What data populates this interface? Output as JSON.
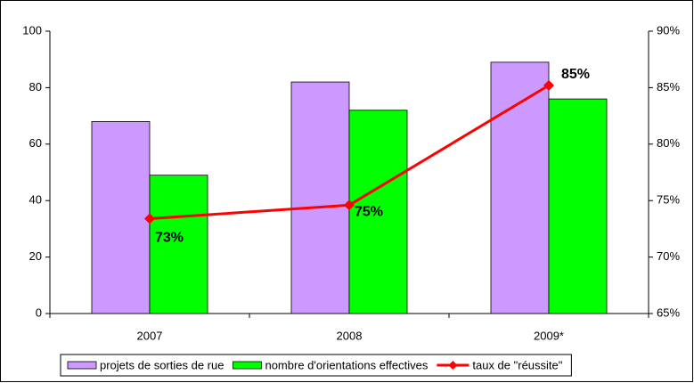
{
  "chart_data": {
    "type": "bar-line",
    "categories": [
      "2007",
      "2008",
      "2009*"
    ],
    "series": [
      {
        "name": "projets de sorties de rue",
        "color": "#cc99ff",
        "type": "bar",
        "values": [
          68,
          82,
          89
        ]
      },
      {
        "name": "nombre d'orientations effectives",
        "color": "#00ff00",
        "type": "bar",
        "values": [
          49,
          72,
          76
        ]
      },
      {
        "name": "taux de \"réussite\"",
        "color": "#ff0000",
        "type": "line",
        "axis": "y2",
        "values": [
          73.4,
          74.6,
          85.2
        ],
        "value_labels": [
          "73%",
          "75%",
          "85%"
        ]
      }
    ],
    "ylim": [
      0,
      100
    ],
    "yticks": [
      0,
      20,
      40,
      60,
      80,
      100
    ],
    "y2lim": [
      65,
      90
    ],
    "y2ticks": [
      {
        "value": 65,
        "label": "65%"
      },
      {
        "value": 70,
        "label": "70%"
      },
      {
        "value": 75,
        "label": "75%"
      },
      {
        "value": 80,
        "label": "80%"
      },
      {
        "value": 85,
        "label": "85%"
      },
      {
        "value": 90,
        "label": "90%"
      }
    ],
    "grid": false,
    "legend": "bottom"
  }
}
